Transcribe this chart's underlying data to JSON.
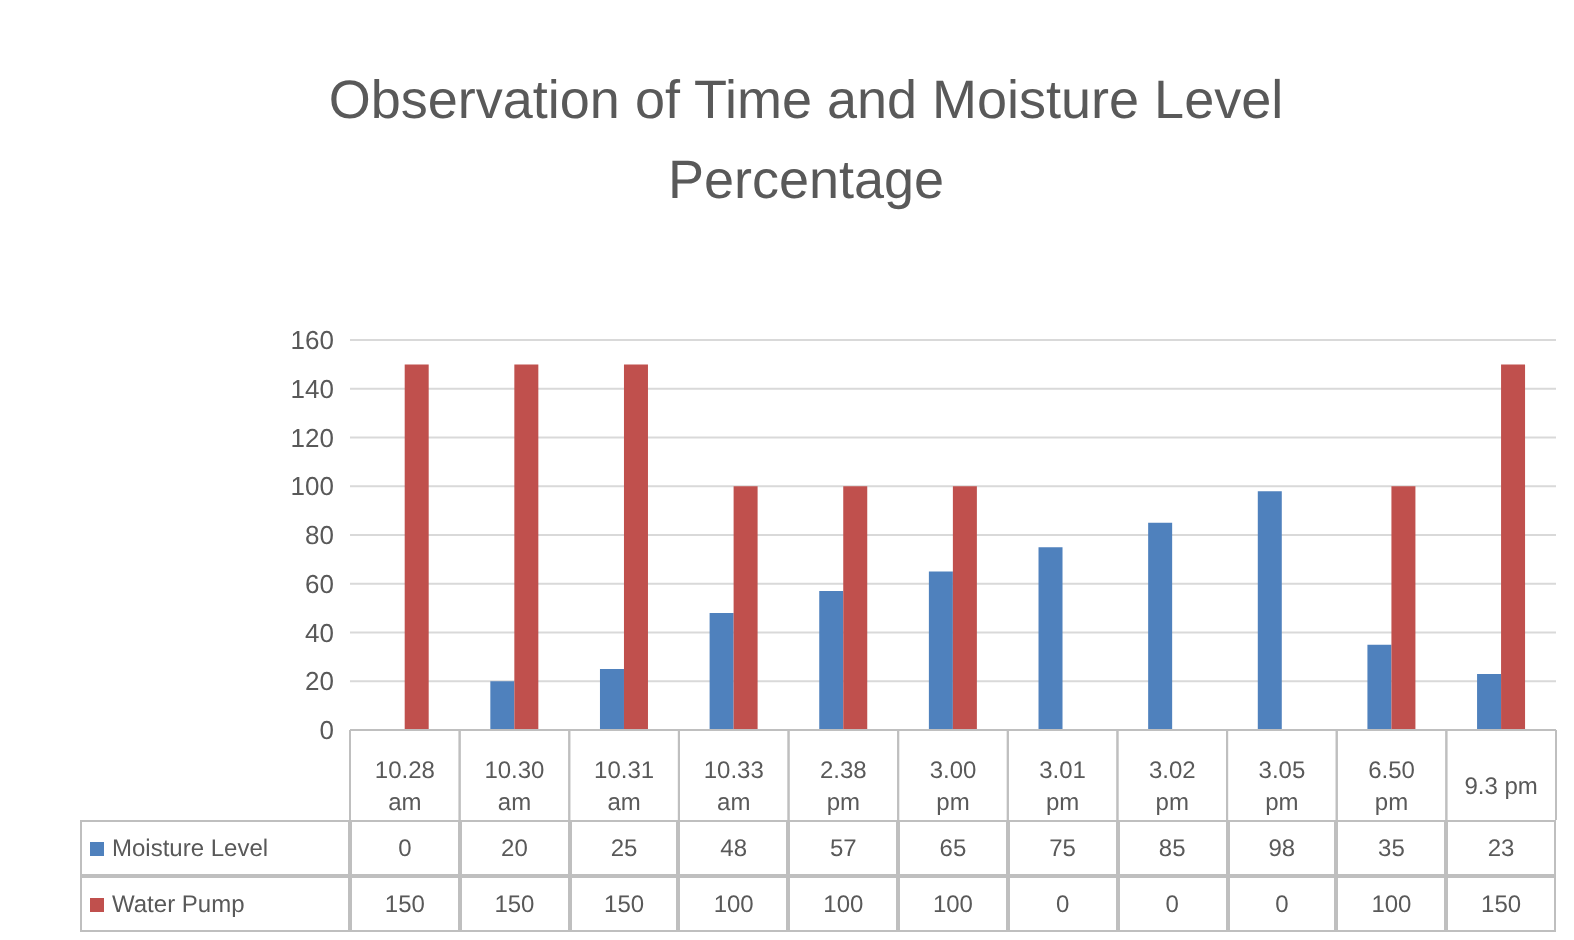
{
  "chart_data": {
    "type": "bar",
    "title": "Observation of Time and Moisture Level Percentage",
    "categories": [
      "10.28 am",
      "10.30 am",
      "10.31 am",
      "10.33 am",
      "2.38 pm",
      "3.00 pm",
      "3.01 pm",
      "3.02 pm",
      "3.05 pm",
      "6.50 pm",
      "9.3 pm"
    ],
    "series": [
      {
        "name": "Moisture Level",
        "color": "#4f81bd",
        "values": [
          0,
          20,
          25,
          48,
          57,
          65,
          75,
          85,
          98,
          35,
          23
        ]
      },
      {
        "name": "Water Pump",
        "color": "#c0504d",
        "values": [
          150,
          150,
          150,
          100,
          100,
          100,
          0,
          0,
          0,
          100,
          150
        ]
      }
    ],
    "ylim": [
      0,
      160
    ],
    "yticks": [
      0,
      20,
      40,
      60,
      80,
      100,
      120,
      140,
      160
    ],
    "grid": "y",
    "legend": "bottom",
    "data_labels": true
  }
}
